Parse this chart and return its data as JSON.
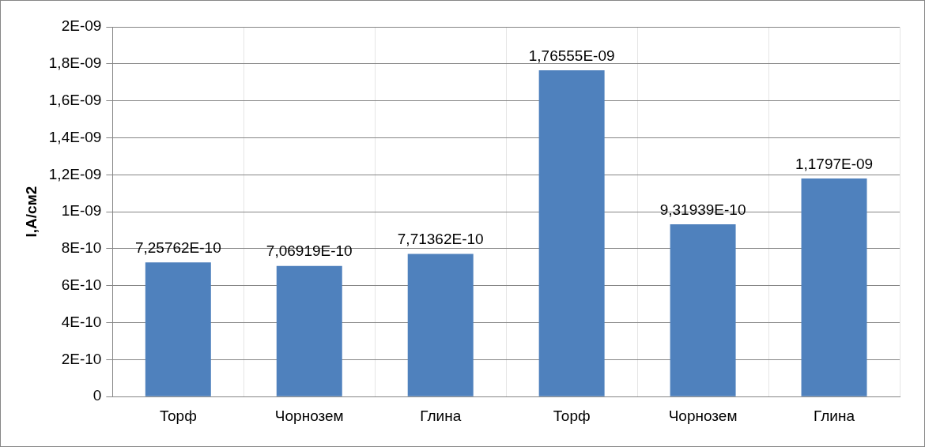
{
  "chart_data": {
    "type": "bar",
    "ylabel": "I,A/см2",
    "categories": [
      "Торф",
      "Чорнозем",
      "Глина",
      "Торф",
      "Чорнозем",
      "Глина"
    ],
    "values": [
      7.25762e-10,
      7.06919e-10,
      7.71362e-10,
      1.76555e-09,
      9.31939e-10,
      1.1797e-09
    ],
    "value_labels": [
      "7,25762E-10",
      "7,06919E-10",
      "7,71362E-10",
      "1,76555E-09",
      "9,31939E-10",
      "1,1797E-09"
    ],
    "color": "#4f81bd",
    "ylim": [
      0,
      2e-09
    ],
    "yticks": [
      0,
      {
        "value": 2e-10,
        "label": "2E-10"
      },
      {
        "value": 4e-10,
        "label": "4E-10"
      },
      {
        "value": 6e-10,
        "label": "6E-10"
      },
      {
        "value": 8e-10,
        "label": "8E-10"
      },
      {
        "value": 1e-09,
        "label": "1E-09"
      },
      {
        "value": 1.2e-09,
        "label": "1,2E-09"
      },
      {
        "value": 1.4e-09,
        "label": "1,4E-09"
      },
      {
        "value": 1.6e-09,
        "label": "1,6E-09"
      },
      {
        "value": 1.8e-09,
        "label": "1,8E-09"
      },
      {
        "value": 2e-09,
        "label": "2E-09"
      }
    ],
    "grid": true,
    "legend": false
  }
}
